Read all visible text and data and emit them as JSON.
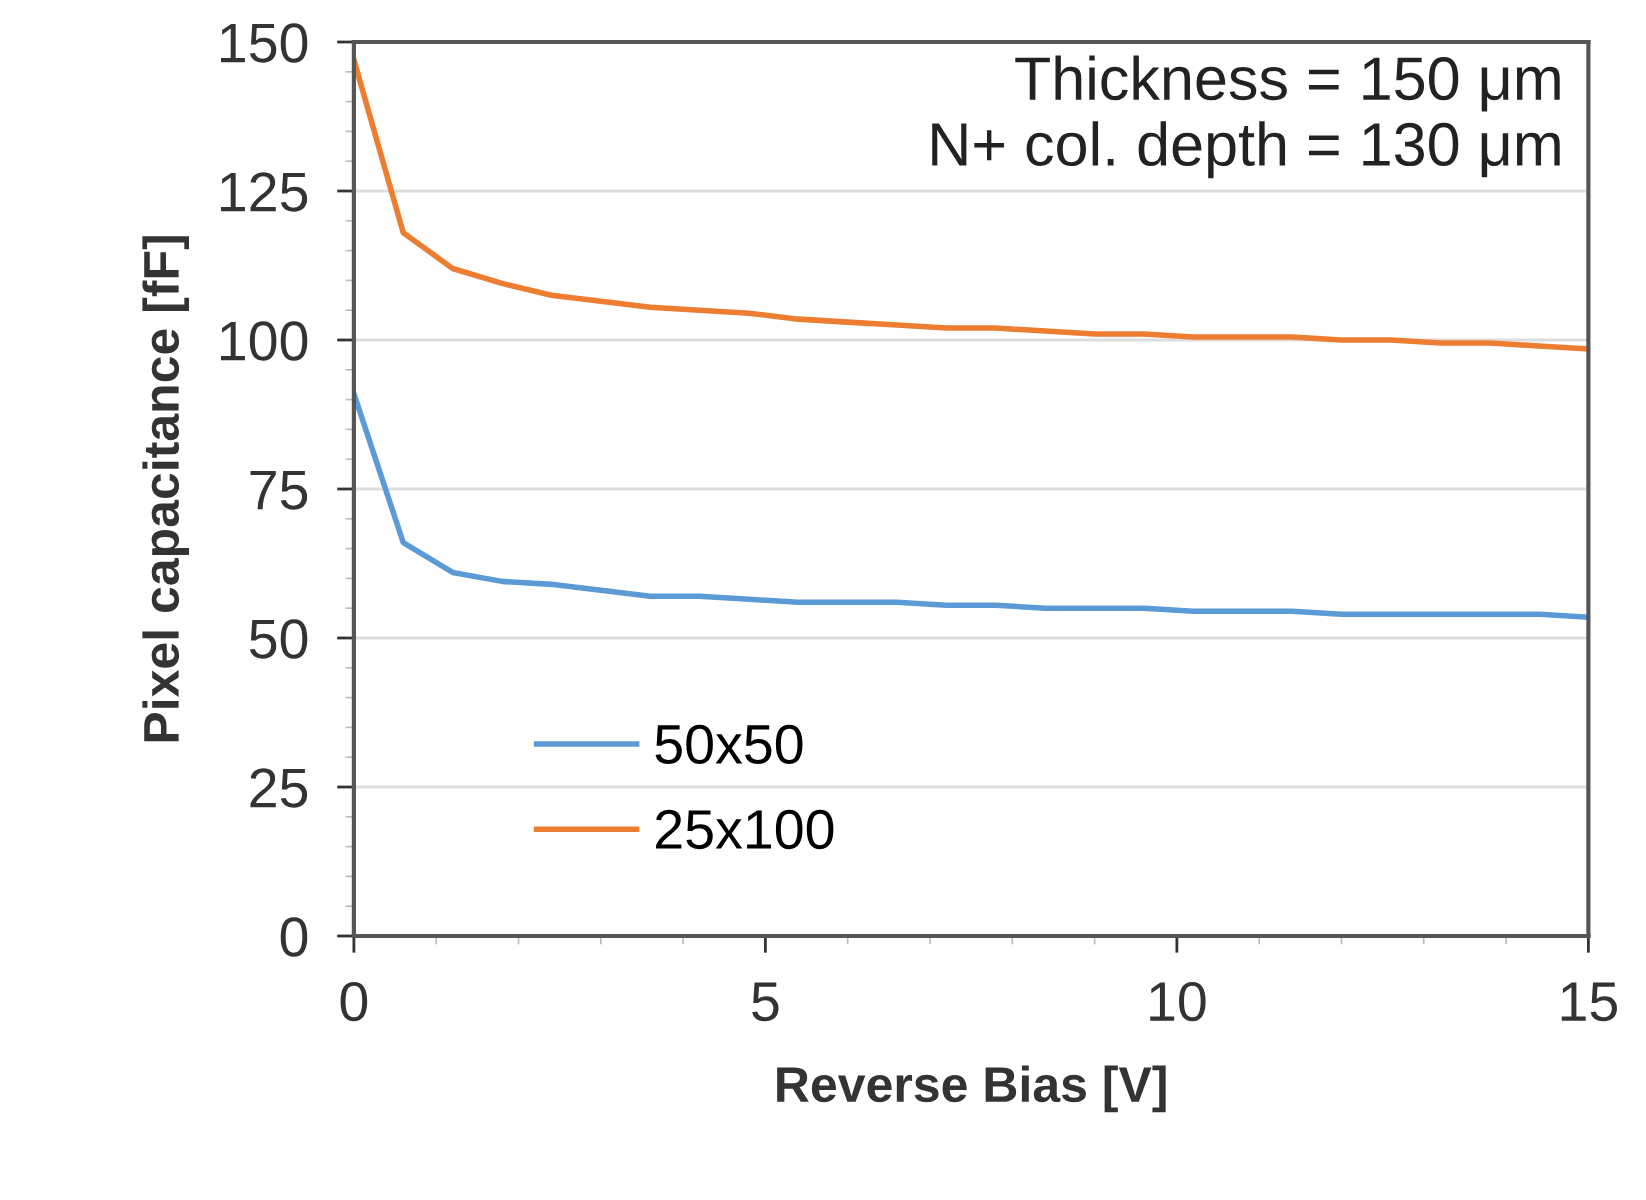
{
  "chart_data": {
    "type": "line",
    "xlabel": "Reverse Bias [V]",
    "ylabel": "Pixel capacitance [fF]",
    "annotations": [
      "Thickness = 150 μm\nN+ col. depth = 130 μm"
    ],
    "x": [
      0,
      0.6,
      1.2,
      1.8,
      2.4,
      3,
      3.6,
      4.2,
      4.8,
      5.4,
      6,
      6.6,
      7.2,
      7.8,
      8.4,
      9,
      9.6,
      10.2,
      10.8,
      11.4,
      12,
      12.6,
      13.2,
      13.8,
      14.4,
      15
    ],
    "series": [
      {
        "name": "50x50",
        "color": "#5b9bd5",
        "values": [
          91,
          66,
          61,
          59.5,
          59,
          58,
          57,
          57,
          56.5,
          56,
          56,
          56,
          55.5,
          55.5,
          55,
          55,
          55,
          54.5,
          54.5,
          54.5,
          54,
          54,
          54,
          54,
          54,
          53.5
        ]
      },
      {
        "name": "25x100",
        "color": "#ed7d31",
        "values": [
          147,
          118,
          112,
          109.5,
          107.5,
          106.5,
          105.5,
          105,
          104.5,
          103.5,
          103,
          102.5,
          102,
          102,
          101.5,
          101,
          101,
          100.5,
          100.5,
          100.5,
          100,
          100,
          99.5,
          99.5,
          99,
          98.5
        ]
      }
    ],
    "xlim": [
      0,
      15
    ],
    "xticks": [
      0,
      5,
      10,
      15
    ],
    "ylim": [
      0,
      150
    ],
    "yticks": [
      0,
      25,
      50,
      75,
      100,
      125,
      150
    ],
    "grid": "y",
    "legend": "bottom left",
    "marker": "none",
    "line_style": "solid"
  }
}
